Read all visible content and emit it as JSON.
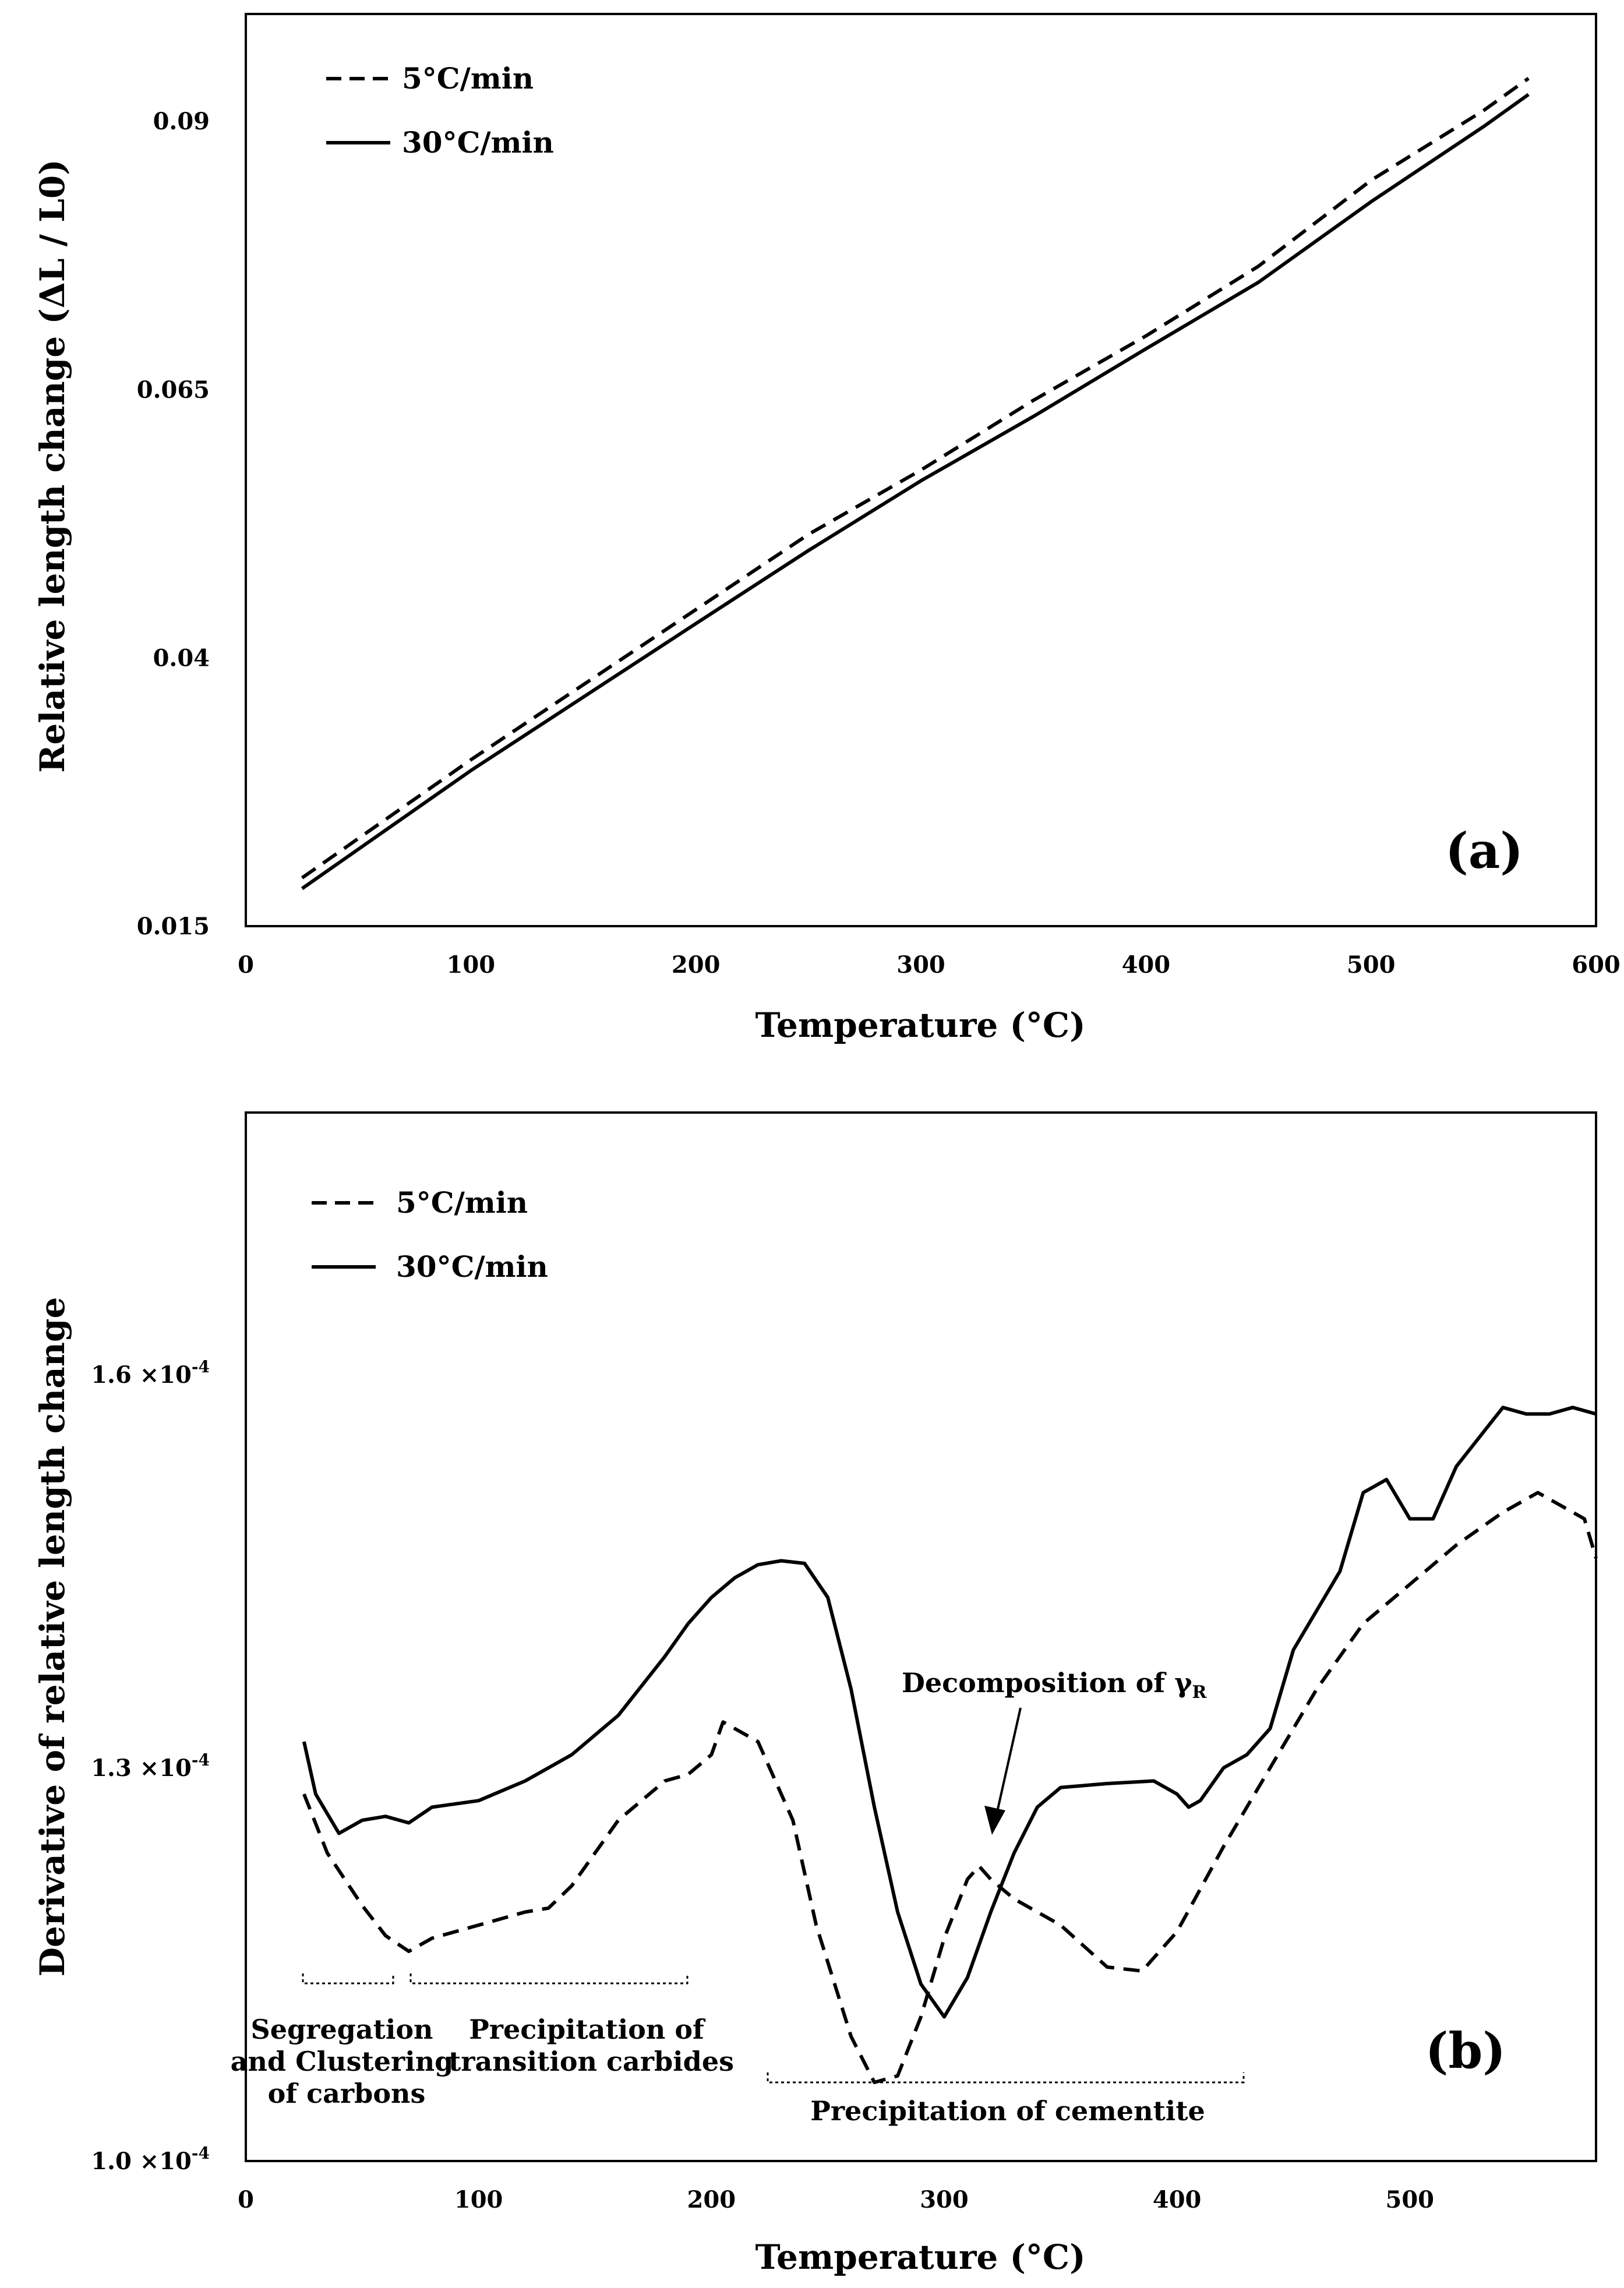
{
  "chart_data": [
    {
      "type": "line",
      "panel_label": "(a)",
      "xlabel": "Temperature (°C)",
      "ylabel": "Relative length change (ΔL / L0)",
      "xlim": [
        0,
        600
      ],
      "ylim": [
        0.015,
        0.1
      ],
      "x_ticks": [
        "0",
        "100",
        "200",
        "300",
        "400",
        "500",
        "600"
      ],
      "y_ticks": [
        "0.015",
        "0.04",
        "0.065",
        "0.09"
      ],
      "legend_position": "top-left",
      "grid": false,
      "series": [
        {
          "name": "5°C/min",
          "style": "dashed",
          "x": [
            25,
            100,
            200,
            250,
            300,
            350,
            400,
            450,
            500,
            550,
            570
          ],
          "y": [
            0.0195,
            0.0305,
            0.0445,
            0.0515,
            0.0575,
            0.064,
            0.07,
            0.0765,
            0.0845,
            0.091,
            0.094
          ]
        },
        {
          "name": "30°C/min",
          "style": "solid",
          "x": [
            25,
            100,
            200,
            250,
            300,
            350,
            400,
            450,
            500,
            550,
            570
          ],
          "y": [
            0.0185,
            0.0295,
            0.0432,
            0.05,
            0.0565,
            0.0625,
            0.0688,
            0.075,
            0.0825,
            0.0895,
            0.0925
          ]
        }
      ]
    },
    {
      "type": "line",
      "panel_label": "(b)",
      "xlabel": "Temperature (°C)",
      "ylabel": "Derivative of relative length change",
      "xlim": [
        0,
        580
      ],
      "ylim": [
        0.0001,
        0.00018
      ],
      "x_ticks": [
        "0",
        "100",
        "200",
        "300",
        "400",
        "500"
      ],
      "y_ticks": [
        "1.0 ×10",
        "1.3 ×10",
        "1.6 ×10"
      ],
      "y_tick_exponent": "-4",
      "legend_position": "top-left",
      "grid": false,
      "annotations": {
        "decomposition": {
          "text": "Decomposition of γ",
          "subscript": "R"
        },
        "segregation": [
          "Segregation",
          "and Clustering",
          "of carbons"
        ],
        "transition": [
          "Precipitation of",
          "transition carbides"
        ],
        "cementite": [
          "Precipitation of cementite"
        ]
      },
      "series": [
        {
          "name": "5°C/min",
          "style": "dashed",
          "x": [
            25,
            35,
            50,
            60,
            70,
            80,
            100,
            120,
            130,
            140,
            160,
            180,
            190,
            200,
            205,
            220,
            235,
            245,
            260,
            270,
            280,
            290,
            300,
            310,
            315,
            320,
            330,
            350,
            370,
            385,
            400,
            420,
            440,
            460,
            480,
            500,
            520,
            540,
            555,
            565,
            575,
            580
          ],
          "y": [
            0.000128,
            0.0001235,
            0.0001195,
            0.0001172,
            0.000116,
            0.000117,
            0.000118,
            0.000119,
            0.0001193,
            0.000121,
            0.000126,
            0.000129,
            0.0001295,
            0.000131,
            0.0001335,
            0.000132,
            0.000126,
            0.000118,
            0.0001095,
            0.000106,
            0.0001065,
            0.000111,
            0.000117,
            0.0001215,
            0.0001225,
            0.0001215,
            0.00012,
            0.000118,
            0.0001148,
            0.0001145,
            0.0001175,
            0.000124,
            0.00013,
            0.000136,
            0.000141,
            0.000144,
            0.000147,
            0.0001495,
            0.000151,
            0.00015,
            0.000149,
            0.000146
          ]
        },
        {
          "name": "30°C/min",
          "style": "solid",
          "x": [
            25,
            30,
            40,
            50,
            60,
            70,
            80,
            100,
            120,
            140,
            160,
            180,
            190,
            200,
            210,
            220,
            230,
            240,
            250,
            260,
            270,
            280,
            290,
            300,
            310,
            320,
            330,
            340,
            350,
            370,
            390,
            400,
            405,
            410,
            420,
            430,
            440,
            450,
            470,
            480,
            490,
            500,
            510,
            520,
            540,
            550,
            560,
            570,
            580
          ],
          "y": [
            0.000132,
            0.000128,
            0.000125,
            0.000126,
            0.0001263,
            0.0001258,
            0.000127,
            0.0001275,
            0.000129,
            0.000131,
            0.000134,
            0.0001385,
            0.000141,
            0.000143,
            0.0001445,
            0.0001455,
            0.0001458,
            0.0001456,
            0.000143,
            0.000136,
            0.000127,
            0.000119,
            0.0001135,
            0.000111,
            0.000114,
            0.000119,
            0.0001235,
            0.000127,
            0.0001285,
            0.0001288,
            0.000129,
            0.000128,
            0.000127,
            0.0001275,
            0.00013,
            0.000131,
            0.000133,
            0.000139,
            0.000145,
            0.000151,
            0.000152,
            0.000149,
            0.000149,
            0.000153,
            0.0001575,
            0.000157,
            0.000157,
            0.0001575,
            0.000157
          ]
        }
      ]
    }
  ]
}
